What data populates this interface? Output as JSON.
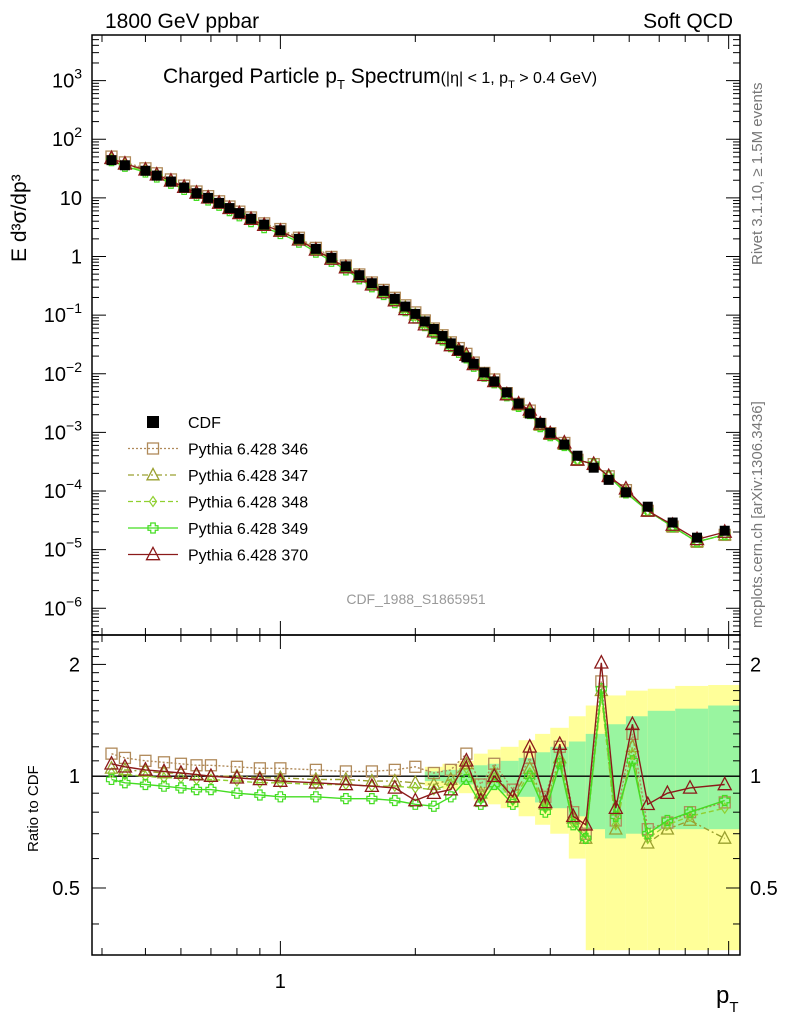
{
  "header": {
    "left": "1800 GeV ppbar",
    "right": "Soft QCD"
  },
  "side_labels": {
    "rivet": "Rivet 3.1.10, ≥ 1.5M events",
    "mcplots": "mcplots.cern.ch [arXiv:1306.3436]"
  },
  "chart_data": {
    "type": "line",
    "title_main": "Charged Particle p",
    "title_main_sub": "T",
    "title_main_tail": " Spectrum",
    "title_cut_a": "(|η| < 1, p",
    "title_cut_sub": "T",
    "title_cut_b": " > 0.4 GeV)",
    "watermark": "CDF_1988_S1865951",
    "ylabel": "E d³σ/dp³",
    "ratio_ylabel": "Ratio to CDF",
    "xlabel": "p",
    "xlabel_sub": "T",
    "xscale": "log",
    "xlim": [
      0.38,
      10.6
    ],
    "yscale": "log",
    "ylim": [
      3.5e-07,
      6000
    ],
    "ratio_ylim": [
      0.33,
      2.4
    ],
    "x_tick_labels": [
      "1"
    ],
    "y_tick_labels": [
      {
        "mant": "10",
        "exp": "3"
      },
      {
        "mant": "10",
        "exp": "2"
      },
      {
        "mant": "10",
        "exp": ""
      },
      {
        "mant": "1",
        "exp": ""
      },
      {
        "mant": "10",
        "exp": "−1"
      },
      {
        "mant": "10",
        "exp": "−2"
      },
      {
        "mant": "10",
        "exp": "−3"
      },
      {
        "mant": "10",
        "exp": "−4"
      },
      {
        "mant": "10",
        "exp": "−5"
      },
      {
        "mant": "10",
        "exp": "−6"
      }
    ],
    "ratio_tick_labels": [
      "2",
      "1",
      "0.5"
    ],
    "legend": {
      "placement": "lower-left",
      "entries": [
        {
          "name": "CDF",
          "color": "#000000"
        },
        {
          "name": "Pythia 6.428 346",
          "color": "#b08a5a"
        },
        {
          "name": "Pythia 6.428 347",
          "color": "#9aa030"
        },
        {
          "name": "Pythia 6.428 348",
          "color": "#90d030"
        },
        {
          "name": "Pythia 6.428 349",
          "color": "#44dd22"
        },
        {
          "name": "Pythia 6.428 370",
          "color": "#8b1a1a"
        }
      ]
    },
    "series": [
      {
        "name": "CDF",
        "color": "#000000",
        "points": [
          [
            0.42,
            44
          ],
          [
            0.45,
            36
          ],
          [
            0.5,
            29
          ],
          [
            0.53,
            24
          ],
          [
            0.57,
            19
          ],
          [
            0.61,
            15
          ],
          [
            0.65,
            12
          ],
          [
            0.69,
            10
          ],
          [
            0.73,
            8.2
          ],
          [
            0.77,
            6.7
          ],
          [
            0.81,
            5.5
          ],
          [
            0.86,
            4.4
          ],
          [
            0.92,
            3.5
          ],
          [
            1.0,
            2.8
          ],
          [
            1.1,
            2.0
          ],
          [
            1.2,
            1.35
          ],
          [
            1.3,
            0.95
          ],
          [
            1.4,
            0.68
          ],
          [
            1.5,
            0.48
          ],
          [
            1.6,
            0.35
          ],
          [
            1.7,
            0.26
          ],
          [
            1.8,
            0.19
          ],
          [
            1.9,
            0.14
          ],
          [
            2.0,
            0.105
          ],
          [
            2.1,
            0.078
          ],
          [
            2.2,
            0.058
          ],
          [
            2.3,
            0.044
          ],
          [
            2.4,
            0.033
          ],
          [
            2.5,
            0.025
          ],
          [
            2.6,
            0.019
          ],
          [
            2.7,
            0.0148
          ],
          [
            2.85,
            0.0105
          ],
          [
            3.0,
            0.0074
          ],
          [
            3.2,
            0.0048
          ],
          [
            3.4,
            0.0031
          ],
          [
            3.6,
            0.0021
          ],
          [
            3.8,
            0.00145
          ],
          [
            4.0,
            0.00098
          ],
          [
            4.3,
            0.00062
          ],
          [
            4.6,
            0.0004
          ],
          [
            5.0,
            0.00025
          ],
          [
            5.4,
            0.000155
          ],
          [
            5.9,
            9.5e-05
          ],
          [
            6.6,
            5.4e-05
          ],
          [
            7.5,
            2.9e-05
          ],
          [
            8.5,
            1.6e-05
          ],
          [
            9.8,
            2.1e-05
          ]
        ]
      }
    ],
    "ratio_series": [
      {
        "name": "Pythia 6.428 346",
        "color": "#b08a5a",
        "points": [
          [
            0.42,
            1.15
          ],
          [
            0.45,
            1.12
          ],
          [
            0.5,
            1.1
          ],
          [
            0.55,
            1.09
          ],
          [
            0.6,
            1.08
          ],
          [
            0.65,
            1.07
          ],
          [
            0.7,
            1.07
          ],
          [
            0.8,
            1.06
          ],
          [
            0.9,
            1.05
          ],
          [
            1.0,
            1.05
          ],
          [
            1.2,
            1.04
          ],
          [
            1.4,
            1.03
          ],
          [
            1.6,
            1.03
          ],
          [
            1.8,
            1.04
          ],
          [
            2.0,
            1.06
          ],
          [
            2.2,
            1.02
          ],
          [
            2.4,
            1.04
          ],
          [
            2.6,
            1.15
          ],
          [
            2.8,
            0.95
          ],
          [
            3.0,
            1.08
          ],
          [
            3.3,
            0.92
          ],
          [
            3.6,
            1.12
          ],
          [
            3.9,
            0.88
          ],
          [
            4.2,
            1.2
          ],
          [
            4.5,
            0.8
          ],
          [
            4.8,
            0.7
          ],
          [
            5.2,
            1.8
          ],
          [
            5.6,
            0.76
          ],
          [
            6.1,
            1.3
          ],
          [
            6.6,
            0.72
          ],
          [
            7.3,
            0.75
          ],
          [
            8.2,
            0.8
          ],
          [
            9.8,
            0.85
          ]
        ]
      },
      {
        "name": "Pythia 6.428 347",
        "color": "#9aa030",
        "points": [
          [
            0.42,
            1.05
          ],
          [
            0.45,
            1.04
          ],
          [
            0.5,
            1.03
          ],
          [
            0.55,
            1.02
          ],
          [
            0.6,
            1.02
          ],
          [
            0.65,
            1.01
          ],
          [
            0.7,
            1.0
          ],
          [
            0.8,
            1.0
          ],
          [
            0.9,
            0.99
          ],
          [
            1.0,
            0.99
          ],
          [
            1.2,
            0.98
          ],
          [
            1.4,
            0.98
          ],
          [
            1.6,
            0.97
          ],
          [
            1.8,
            0.97
          ],
          [
            2.0,
            0.96
          ],
          [
            2.2,
            0.95
          ],
          [
            2.4,
            0.98
          ],
          [
            2.6,
            1.08
          ],
          [
            2.8,
            0.9
          ],
          [
            3.0,
            1.02
          ],
          [
            3.3,
            0.88
          ],
          [
            3.6,
            1.05
          ],
          [
            3.9,
            0.84
          ],
          [
            4.2,
            1.12
          ],
          [
            4.5,
            0.77
          ],
          [
            4.8,
            0.68
          ],
          [
            5.2,
            1.7
          ],
          [
            5.6,
            0.72
          ],
          [
            6.1,
            1.2
          ],
          [
            6.6,
            0.66
          ],
          [
            7.3,
            0.72
          ],
          [
            8.2,
            0.76
          ],
          [
            9.8,
            0.68
          ]
        ]
      },
      {
        "name": "Pythia 6.428 348",
        "color": "#90d030",
        "points": [
          [
            0.42,
            1.02
          ],
          [
            0.45,
            1.01
          ],
          [
            0.5,
            1.0
          ],
          [
            0.55,
            0.99
          ],
          [
            0.6,
            0.99
          ],
          [
            0.65,
            0.98
          ],
          [
            0.7,
            0.98
          ],
          [
            0.8,
            0.97
          ],
          [
            0.9,
            0.96
          ],
          [
            1.0,
            0.96
          ],
          [
            1.2,
            0.95
          ],
          [
            1.4,
            0.95
          ],
          [
            1.6,
            0.94
          ],
          [
            1.8,
            0.94
          ],
          [
            2.0,
            0.93
          ],
          [
            2.2,
            0.92
          ],
          [
            2.4,
            0.95
          ],
          [
            2.6,
            1.05
          ],
          [
            2.8,
            0.88
          ],
          [
            3.0,
            0.99
          ],
          [
            3.3,
            0.86
          ],
          [
            3.6,
            1.02
          ],
          [
            3.9,
            0.82
          ],
          [
            4.2,
            1.1
          ],
          [
            4.5,
            0.75
          ],
          [
            4.8,
            0.68
          ],
          [
            5.2,
            1.65
          ],
          [
            5.6,
            0.74
          ],
          [
            6.1,
            1.15
          ],
          [
            6.6,
            0.68
          ],
          [
            7.3,
            0.74
          ],
          [
            8.2,
            0.78
          ],
          [
            9.8,
            0.82
          ]
        ]
      },
      {
        "name": "Pythia 6.428 349",
        "color": "#44dd22",
        "points": [
          [
            0.42,
            0.98
          ],
          [
            0.45,
            0.96
          ],
          [
            0.5,
            0.95
          ],
          [
            0.55,
            0.94
          ],
          [
            0.6,
            0.93
          ],
          [
            0.65,
            0.92
          ],
          [
            0.7,
            0.92
          ],
          [
            0.8,
            0.9
          ],
          [
            0.9,
            0.89
          ],
          [
            1.0,
            0.88
          ],
          [
            1.2,
            0.88
          ],
          [
            1.4,
            0.87
          ],
          [
            1.6,
            0.87
          ],
          [
            1.8,
            0.86
          ],
          [
            2.0,
            0.84
          ],
          [
            2.2,
            0.83
          ],
          [
            2.4,
            0.88
          ],
          [
            2.6,
            0.98
          ],
          [
            2.8,
            0.84
          ],
          [
            3.0,
            0.95
          ],
          [
            3.3,
            0.84
          ],
          [
            3.6,
            1.0
          ],
          [
            3.9,
            0.8
          ],
          [
            4.2,
            1.08
          ],
          [
            4.5,
            0.74
          ],
          [
            4.8,
            0.68
          ],
          [
            5.2,
            1.72
          ],
          [
            5.6,
            0.78
          ],
          [
            6.1,
            1.1
          ],
          [
            6.6,
            0.7
          ],
          [
            7.3,
            0.76
          ],
          [
            8.2,
            0.8
          ],
          [
            9.8,
            0.86
          ]
        ]
      },
      {
        "name": "Pythia 6.428 370",
        "color": "#8b1a1a",
        "points": [
          [
            0.42,
            1.08
          ],
          [
            0.45,
            1.06
          ],
          [
            0.5,
            1.04
          ],
          [
            0.55,
            1.03
          ],
          [
            0.6,
            1.02
          ],
          [
            0.65,
            1.01
          ],
          [
            0.7,
            1.0
          ],
          [
            0.8,
            0.99
          ],
          [
            0.9,
            0.98
          ],
          [
            1.0,
            0.97
          ],
          [
            1.2,
            0.96
          ],
          [
            1.4,
            0.95
          ],
          [
            1.6,
            0.94
          ],
          [
            1.8,
            0.93
          ],
          [
            2.0,
            0.86
          ],
          [
            2.2,
            0.9
          ],
          [
            2.4,
            0.92
          ],
          [
            2.6,
            1.1
          ],
          [
            2.8,
            0.86
          ],
          [
            3.0,
            1.0
          ],
          [
            3.3,
            0.88
          ],
          [
            3.6,
            1.2
          ],
          [
            3.9,
            0.85
          ],
          [
            4.2,
            1.22
          ],
          [
            4.5,
            0.78
          ],
          [
            4.8,
            0.74
          ],
          [
            5.2,
            2.02
          ],
          [
            5.6,
            0.82
          ],
          [
            6.1,
            1.38
          ],
          [
            6.6,
            0.84
          ],
          [
            7.3,
            0.9
          ],
          [
            8.2,
            0.93
          ],
          [
            9.8,
            0.95
          ]
        ]
      }
    ],
    "uncertainty_bands": {
      "yellow": "#ffff99",
      "green": "#99f5a0",
      "bins": [
        [
          2.1,
          0.94,
          1.06,
          0.97,
          1.03
        ],
        [
          2.3,
          0.92,
          1.08,
          0.96,
          1.04
        ],
        [
          2.5,
          0.9,
          1.1,
          0.95,
          1.05
        ],
        [
          2.7,
          0.86,
          1.15,
          0.93,
          1.07
        ],
        [
          2.9,
          0.84,
          1.18,
          0.92,
          1.08
        ],
        [
          3.1,
          0.82,
          1.2,
          0.9,
          1.1
        ],
        [
          3.4,
          0.78,
          1.25,
          0.88,
          1.12
        ],
        [
          3.7,
          0.74,
          1.3,
          0.85,
          1.16
        ],
        [
          4.0,
          0.7,
          1.35,
          0.82,
          1.2
        ],
        [
          4.4,
          0.6,
          1.45,
          0.78,
          1.24
        ],
        [
          4.8,
          0.34,
          1.55,
          0.72,
          1.3
        ],
        [
          5.3,
          0.34,
          1.65,
          0.68,
          1.38
        ],
        [
          5.9,
          0.34,
          1.7,
          0.7,
          1.45
        ],
        [
          6.6,
          0.34,
          1.72,
          0.72,
          1.5
        ],
        [
          7.6,
          0.34,
          1.75,
          0.72,
          1.52
        ],
        [
          9.0,
          0.34,
          1.76,
          0.72,
          1.55
        ]
      ]
    }
  }
}
